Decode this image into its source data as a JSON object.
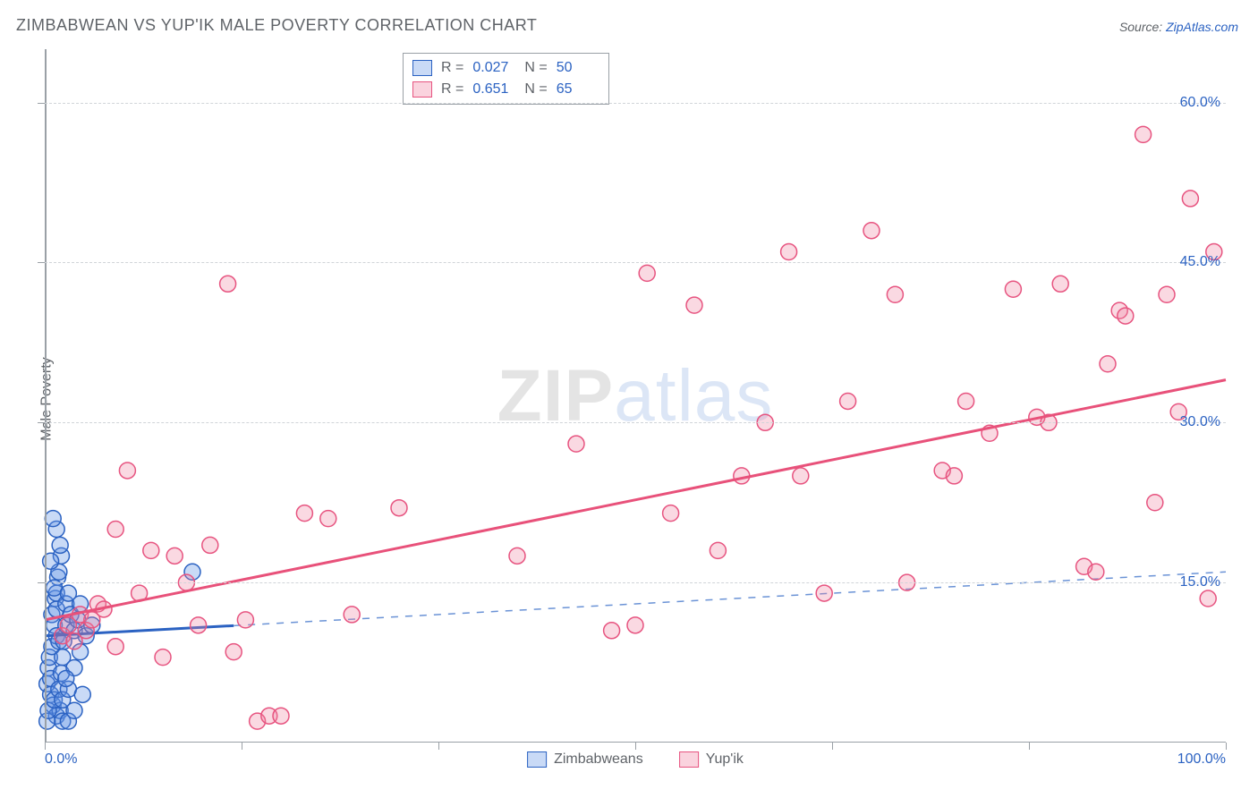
{
  "title": "ZIMBABWEAN VS YUP'IK MALE POVERTY CORRELATION CHART",
  "source_label": "Source: ",
  "source_value": "ZipAtlas.com",
  "y_axis_label": "Male Poverty",
  "watermark": {
    "part1": "ZIP",
    "part2": "atlas"
  },
  "chart": {
    "type": "scatter",
    "background_color": "#ffffff",
    "grid_color": "#d0d4d8",
    "axis_color": "#9aa0a6",
    "tick_label_color": "#2b62c2",
    "title_fontsize": 18,
    "label_fontsize": 16,
    "xlim": [
      0,
      100
    ],
    "ylim": [
      0,
      65
    ],
    "y_ticks": [
      15,
      30,
      45,
      60
    ],
    "y_tick_labels": [
      "15.0%",
      "30.0%",
      "45.0%",
      "60.0%"
    ],
    "x_ticks": [
      0,
      16.67,
      33.33,
      50,
      66.67,
      83.33,
      100
    ],
    "x_tick_labels_shown": {
      "0": "0.0%",
      "100": "100.0%"
    },
    "marker_radius": 9,
    "marker_stroke_width": 1.5,
    "series": [
      {
        "name": "Zimbabweans",
        "color_fill": "rgba(100,150,230,0.35)",
        "color_stroke": "#2b62c2",
        "R": "0.027",
        "N": "50",
        "trend": {
          "solid_from_x": 0,
          "solid_to_x": 16,
          "y_at_x0": 10.0,
          "y_at_x100": 16.0,
          "solid_color": "#2b62c2",
          "solid_width": 3,
          "dash_color": "#6b93d6",
          "dash_width": 1.5
        },
        "points": [
          [
            0.2,
            5.5
          ],
          [
            0.3,
            7.0
          ],
          [
            0.4,
            8.0
          ],
          [
            0.5,
            6.0
          ],
          [
            0.6,
            9.0
          ],
          [
            0.6,
            12.0
          ],
          [
            0.8,
            11.0
          ],
          [
            0.9,
            13.5
          ],
          [
            1.0,
            10.0
          ],
          [
            1.0,
            14.0
          ],
          [
            1.1,
            15.5
          ],
          [
            1.2,
            9.5
          ],
          [
            0.5,
            4.5
          ],
          [
            0.7,
            3.5
          ],
          [
            1.0,
            2.5
          ],
          [
            1.3,
            3.0
          ],
          [
            1.5,
            2.0
          ],
          [
            0.2,
            2.0
          ],
          [
            0.3,
            3.0
          ],
          [
            0.8,
            4.0
          ],
          [
            1.2,
            5.0
          ],
          [
            1.4,
            6.5
          ],
          [
            1.5,
            8.0
          ],
          [
            1.6,
            9.5
          ],
          [
            1.8,
            11.0
          ],
          [
            1.0,
            12.5
          ],
          [
            0.8,
            14.5
          ],
          [
            1.2,
            16.0
          ],
          [
            1.4,
            17.5
          ],
          [
            0.5,
            17.0
          ],
          [
            1.8,
            13.0
          ],
          [
            2.0,
            14.0
          ],
          [
            2.2,
            12.0
          ],
          [
            2.5,
            10.5
          ],
          [
            2.8,
            11.5
          ],
          [
            3.0,
            13.0
          ],
          [
            1.5,
            4.0
          ],
          [
            2.0,
            5.0
          ],
          [
            2.5,
            7.0
          ],
          [
            3.0,
            8.5
          ],
          [
            3.5,
            10.0
          ],
          [
            4.0,
            11.0
          ],
          [
            1.0,
            20.0
          ],
          [
            1.3,
            18.5
          ],
          [
            0.7,
            21.0
          ],
          [
            12.5,
            16.0
          ],
          [
            2.0,
            2.0
          ],
          [
            2.5,
            3.0
          ],
          [
            3.2,
            4.5
          ],
          [
            1.8,
            6.0
          ]
        ]
      },
      {
        "name": "Yup'ik",
        "color_fill": "rgba(240,130,160,0.30)",
        "color_stroke": "#e75480",
        "R": "0.651",
        "N": "65",
        "trend": {
          "solid_from_x": 0,
          "solid_to_x": 100,
          "y_at_x0": 11.5,
          "y_at_x100": 34.0,
          "solid_color": "#e8517a",
          "solid_width": 3
        },
        "points": [
          [
            1.5,
            10.0
          ],
          [
            2.0,
            11.0
          ],
          [
            2.5,
            9.5
          ],
          [
            3.0,
            12.0
          ],
          [
            3.5,
            10.5
          ],
          [
            4.0,
            11.5
          ],
          [
            4.5,
            13.0
          ],
          [
            5.0,
            12.5
          ],
          [
            6.0,
            9.0
          ],
          [
            6.0,
            20.0
          ],
          [
            7.0,
            25.5
          ],
          [
            8.0,
            14.0
          ],
          [
            9.0,
            18.0
          ],
          [
            10.0,
            8.0
          ],
          [
            11.0,
            17.5
          ],
          [
            12.0,
            15.0
          ],
          [
            13.0,
            11.0
          ],
          [
            14.0,
            18.5
          ],
          [
            15.5,
            43.0
          ],
          [
            16.0,
            8.5
          ],
          [
            17.0,
            11.5
          ],
          [
            18.0,
            2.0
          ],
          [
            19.0,
            2.5
          ],
          [
            20.0,
            2.5
          ],
          [
            22.0,
            21.5
          ],
          [
            24.0,
            21.0
          ],
          [
            26.0,
            12.0
          ],
          [
            30.0,
            22.0
          ],
          [
            40.0,
            17.5
          ],
          [
            45.0,
            28.0
          ],
          [
            48.0,
            10.5
          ],
          [
            50.0,
            11.0
          ],
          [
            51.0,
            44.0
          ],
          [
            53.0,
            21.5
          ],
          [
            55.0,
            41.0
          ],
          [
            57.0,
            18.0
          ],
          [
            59.0,
            25.0
          ],
          [
            61.0,
            30.0
          ],
          [
            63.0,
            46.0
          ],
          [
            64.0,
            25.0
          ],
          [
            66.0,
            14.0
          ],
          [
            68.0,
            32.0
          ],
          [
            70.0,
            48.0
          ],
          [
            72.0,
            42.0
          ],
          [
            73.0,
            15.0
          ],
          [
            76.0,
            25.5
          ],
          [
            77.0,
            25.0
          ],
          [
            78.0,
            32.0
          ],
          [
            80.0,
            29.0
          ],
          [
            82.0,
            42.5
          ],
          [
            84.0,
            30.5
          ],
          [
            85.0,
            30.0
          ],
          [
            86.0,
            43.0
          ],
          [
            88.0,
            16.5
          ],
          [
            89.0,
            16.0
          ],
          [
            90.0,
            35.5
          ],
          [
            91.0,
            40.5
          ],
          [
            91.5,
            40.0
          ],
          [
            93.0,
            57.0
          ],
          [
            94.0,
            22.5
          ],
          [
            95.0,
            42.0
          ],
          [
            96.0,
            31.0
          ],
          [
            97.0,
            51.0
          ],
          [
            98.5,
            13.5
          ],
          [
            99.0,
            46.0
          ]
        ]
      }
    ]
  },
  "legend_bottom": [
    {
      "swatch": "blue",
      "label": "Zimbabweans"
    },
    {
      "swatch": "pink",
      "label": "Yup'ik"
    }
  ]
}
